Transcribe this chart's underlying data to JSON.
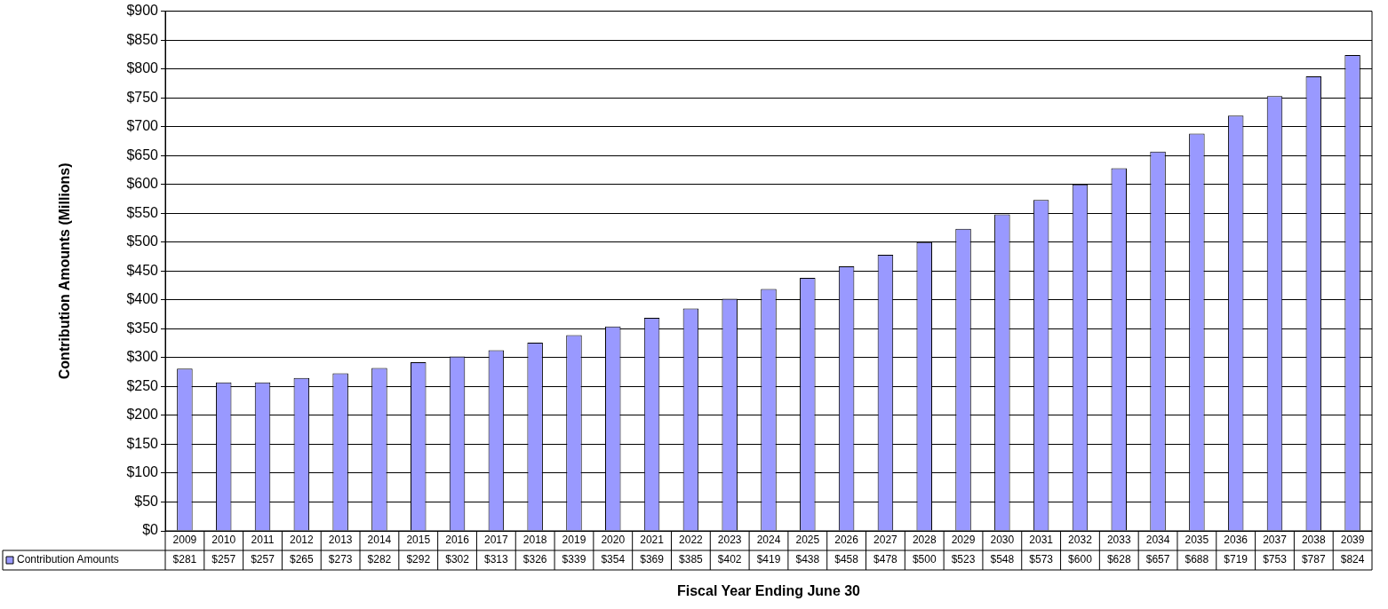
{
  "chart_data": {
    "type": "bar",
    "xlabel": "Fiscal Year Ending June 30",
    "ylabel": "Contribution Amounts (Millions)",
    "categories": [
      "2009",
      "2010",
      "2011",
      "2012",
      "2013",
      "2014",
      "2015",
      "2016",
      "2017",
      "2018",
      "2019",
      "2020",
      "2021",
      "2022",
      "2023",
      "2024",
      "2025",
      "2026",
      "2027",
      "2028",
      "2029",
      "2030",
      "2031",
      "2032",
      "2033",
      "2034",
      "2035",
      "2036",
      "2037",
      "2038",
      "2039"
    ],
    "series": [
      {
        "name": "Contribution Amounts",
        "color": "#9999ff",
        "values": [
          281,
          257,
          257,
          265,
          273,
          282,
          292,
          302,
          313,
          326,
          339,
          354,
          369,
          385,
          402,
          419,
          438,
          458,
          478,
          500,
          523,
          548,
          573,
          600,
          628,
          657,
          688,
          719,
          753,
          787,
          824
        ],
        "value_labels": [
          "$281",
          "$257",
          "$257",
          "$265",
          "$273",
          "$282",
          "$292",
          "$302",
          "$313",
          "$326",
          "$339",
          "$354",
          "$369",
          "$385",
          "$402",
          "$419",
          "$438",
          "$458",
          "$478",
          "$500",
          "$523",
          "$548",
          "$573",
          "$600",
          "$628",
          "$657",
          "$688",
          "$719",
          "$753",
          "$787",
          "$824"
        ]
      }
    ],
    "ylim": [
      0,
      900
    ],
    "yticks": [
      {
        "value": 0,
        "label": "$0"
      },
      {
        "value": 50,
        "label": "$50"
      },
      {
        "value": 100,
        "label": "$100"
      },
      {
        "value": 150,
        "label": "$150"
      },
      {
        "value": 200,
        "label": "$200"
      },
      {
        "value": 250,
        "label": "$250"
      },
      {
        "value": 300,
        "label": "$300"
      },
      {
        "value": 350,
        "label": "$350"
      },
      {
        "value": 400,
        "label": "$400"
      },
      {
        "value": 450,
        "label": "$450"
      },
      {
        "value": 500,
        "label": "$500"
      },
      {
        "value": 550,
        "label": "$550"
      },
      {
        "value": 600,
        "label": "$600"
      },
      {
        "value": 650,
        "label": "$650"
      },
      {
        "value": 700,
        "label": "$700"
      },
      {
        "value": 750,
        "label": "$750"
      },
      {
        "value": 800,
        "label": "$800"
      },
      {
        "value": 850,
        "label": "$850"
      },
      {
        "value": 900,
        "label": "$900"
      }
    ],
    "grid": "y",
    "legend": "bottom left"
  }
}
